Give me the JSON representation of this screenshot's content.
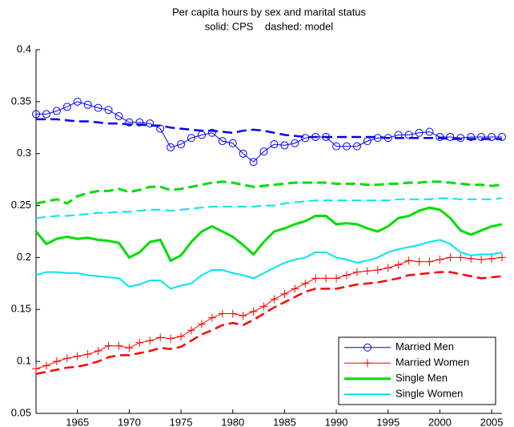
{
  "chart_data": {
    "type": "line",
    "title": "Per capita hours by sex and marital status",
    "subtitle": "solid: CPS    dashed: model",
    "x": [
      1961,
      1962,
      1963,
      1964,
      1965,
      1966,
      1967,
      1968,
      1969,
      1970,
      1971,
      1972,
      1973,
      1974,
      1975,
      1976,
      1977,
      1978,
      1979,
      1980,
      1981,
      1982,
      1983,
      1984,
      1985,
      1986,
      1987,
      1988,
      1989,
      1990,
      1991,
      1992,
      1993,
      1994,
      1995,
      1996,
      1997,
      1998,
      1999,
      2000,
      2001,
      2002,
      2003,
      2004,
      2005,
      2006
    ],
    "xlim": [
      1961,
      2006
    ],
    "xticks": [
      1965,
      1970,
      1975,
      1980,
      1985,
      1990,
      1995,
      2000,
      2005
    ],
    "ylim": [
      0.05,
      0.4
    ],
    "yticks": [
      0.05,
      0.1,
      0.15,
      0.2,
      0.25,
      0.3,
      0.35,
      0.4
    ],
    "legend": "southeast",
    "series": [
      {
        "name": "Married Men",
        "color": "#0000ff",
        "dash": "solid",
        "marker": "circle",
        "values": [
          0.338,
          0.338,
          0.341,
          0.345,
          0.35,
          0.347,
          0.344,
          0.342,
          0.336,
          0.33,
          0.33,
          0.329,
          0.324,
          0.306,
          0.309,
          0.315,
          0.318,
          0.32,
          0.312,
          0.31,
          0.3,
          0.292,
          0.302,
          0.309,
          0.308,
          0.31,
          0.315,
          0.316,
          0.316,
          0.307,
          0.307,
          0.307,
          0.312,
          0.315,
          0.315,
          0.318,
          0.318,
          0.32,
          0.321,
          0.316,
          0.316,
          0.315,
          0.316,
          0.316,
          0.316,
          0.316
        ]
      },
      {
        "name": "Married Women",
        "color": "#ff0000",
        "dash": "solid",
        "marker": "plus",
        "values": [
          0.093,
          0.096,
          0.1,
          0.103,
          0.105,
          0.107,
          0.11,
          0.115,
          0.115,
          0.113,
          0.118,
          0.12,
          0.123,
          0.122,
          0.124,
          0.13,
          0.136,
          0.142,
          0.146,
          0.146,
          0.144,
          0.148,
          0.153,
          0.16,
          0.165,
          0.17,
          0.175,
          0.18,
          0.18,
          0.18,
          0.183,
          0.186,
          0.187,
          0.188,
          0.19,
          0.193,
          0.197,
          0.196,
          0.196,
          0.198,
          0.2,
          0.2,
          0.199,
          0.198,
          0.199,
          0.2
        ]
      },
      {
        "name": "Single Men",
        "color": "#00dd00",
        "dash": "solid",
        "width": 3,
        "values": [
          0.225,
          0.213,
          0.218,
          0.22,
          0.218,
          0.219,
          0.217,
          0.216,
          0.214,
          0.2,
          0.205,
          0.215,
          0.217,
          0.197,
          0.202,
          0.215,
          0.225,
          0.23,
          0.225,
          0.22,
          0.212,
          0.203,
          0.215,
          0.225,
          0.228,
          0.232,
          0.235,
          0.24,
          0.24,
          0.232,
          0.233,
          0.232,
          0.228,
          0.225,
          0.23,
          0.238,
          0.24,
          0.245,
          0.248,
          0.246,
          0.238,
          0.226,
          0.222,
          0.226,
          0.23,
          0.232
        ]
      },
      {
        "name": "Single Women",
        "color": "#00e5ee",
        "dash": "solid",
        "width": 2,
        "values": [
          0.183,
          0.186,
          0.186,
          0.185,
          0.185,
          0.183,
          0.182,
          0.181,
          0.18,
          0.172,
          0.174,
          0.178,
          0.178,
          0.17,
          0.173,
          0.175,
          0.183,
          0.188,
          0.188,
          0.185,
          0.183,
          0.18,
          0.185,
          0.19,
          0.195,
          0.198,
          0.2,
          0.205,
          0.205,
          0.2,
          0.198,
          0.195,
          0.197,
          0.2,
          0.205,
          0.208,
          0.21,
          0.212,
          0.215,
          0.217,
          0.213,
          0.205,
          0.202,
          0.203,
          0.203,
          0.205
        ]
      },
      {
        "color": "#0000ff",
        "dash": "dashed",
        "width": 2.5,
        "values": [
          0.333,
          0.333,
          0.333,
          0.332,
          0.331,
          0.331,
          0.33,
          0.329,
          0.329,
          0.328,
          0.328,
          0.327,
          0.327,
          0.325,
          0.324,
          0.323,
          0.322,
          0.322,
          0.321,
          0.32,
          0.322,
          0.323,
          0.322,
          0.32,
          0.318,
          0.317,
          0.316,
          0.316,
          0.316,
          0.316,
          0.316,
          0.316,
          0.316,
          0.316,
          0.315,
          0.315,
          0.315,
          0.315,
          0.315,
          0.315,
          0.314,
          0.314,
          0.314,
          0.314,
          0.314,
          0.314
        ]
      },
      {
        "color": "#ff0000",
        "dash": "dashed",
        "width": 2.5,
        "values": [
          0.088,
          0.09,
          0.092,
          0.094,
          0.095,
          0.097,
          0.1,
          0.104,
          0.106,
          0.106,
          0.108,
          0.11,
          0.113,
          0.112,
          0.114,
          0.12,
          0.126,
          0.13,
          0.135,
          0.137,
          0.135,
          0.14,
          0.146,
          0.152,
          0.157,
          0.162,
          0.167,
          0.17,
          0.17,
          0.17,
          0.172,
          0.174,
          0.175,
          0.176,
          0.178,
          0.18,
          0.183,
          0.184,
          0.185,
          0.186,
          0.186,
          0.184,
          0.182,
          0.18,
          0.181,
          0.182
        ]
      },
      {
        "color": "#00dd00",
        "dash": "dashed",
        "width": 3,
        "values": [
          0.252,
          0.254,
          0.256,
          0.252,
          0.259,
          0.262,
          0.264,
          0.264,
          0.266,
          0.263,
          0.265,
          0.268,
          0.268,
          0.265,
          0.266,
          0.268,
          0.27,
          0.272,
          0.273,
          0.272,
          0.27,
          0.268,
          0.269,
          0.27,
          0.271,
          0.272,
          0.272,
          0.272,
          0.272,
          0.271,
          0.271,
          0.271,
          0.27,
          0.27,
          0.271,
          0.271,
          0.272,
          0.272,
          0.273,
          0.273,
          0.272,
          0.271,
          0.27,
          0.27,
          0.269,
          0.27
        ]
      },
      {
        "color": "#00e5ee",
        "dash": "dashed",
        "width": 2,
        "values": [
          0.238,
          0.239,
          0.24,
          0.24,
          0.241,
          0.242,
          0.243,
          0.243,
          0.244,
          0.244,
          0.245,
          0.246,
          0.246,
          0.245,
          0.246,
          0.247,
          0.248,
          0.249,
          0.249,
          0.249,
          0.249,
          0.249,
          0.25,
          0.25,
          0.252,
          0.253,
          0.254,
          0.255,
          0.255,
          0.255,
          0.255,
          0.255,
          0.255,
          0.255,
          0.255,
          0.256,
          0.256,
          0.256,
          0.256,
          0.257,
          0.257,
          0.256,
          0.256,
          0.256,
          0.256,
          0.257
        ]
      }
    ]
  }
}
